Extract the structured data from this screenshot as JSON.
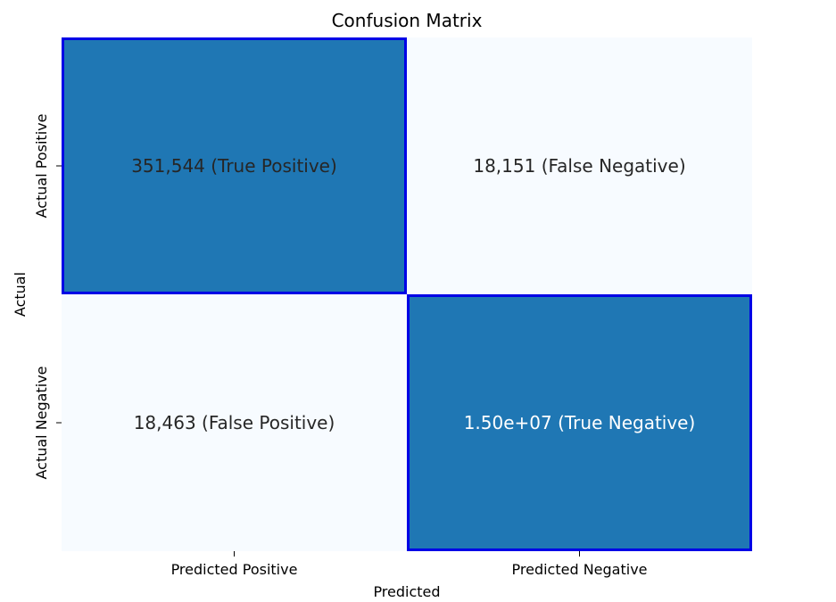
{
  "chart_data": {
    "type": "heatmap",
    "title": "Confusion Matrix",
    "xlabel": "Predicted",
    "ylabel": "Actual",
    "x_categories": [
      "Predicted Positive",
      "Predicted Negative"
    ],
    "y_categories": [
      "Actual Positive",
      "Actual Negative"
    ],
    "cells": [
      [
        {
          "row": 0,
          "col": 0,
          "label": "351,544 (True Positive)",
          "highlight": true
        },
        {
          "row": 0,
          "col": 1,
          "label": "18,151 (False Negative)",
          "highlight": false
        }
      ],
      [
        {
          "row": 1,
          "col": 0,
          "label": "18,463 (False Positive)",
          "highlight": false
        },
        {
          "row": 1,
          "col": 1,
          "label": "1.50e+07 (True Negative)",
          "highlight": true
        }
      ]
    ],
    "values": [
      [
        351544,
        18151
      ],
      [
        18463,
        15000000
      ]
    ],
    "colors": {
      "highlight_fill": "#1f77b4",
      "plain_fill": "#f7fbff",
      "highlight_border": "#0000e6",
      "text_dark": "#262626",
      "text_light": "#ffffff"
    }
  }
}
